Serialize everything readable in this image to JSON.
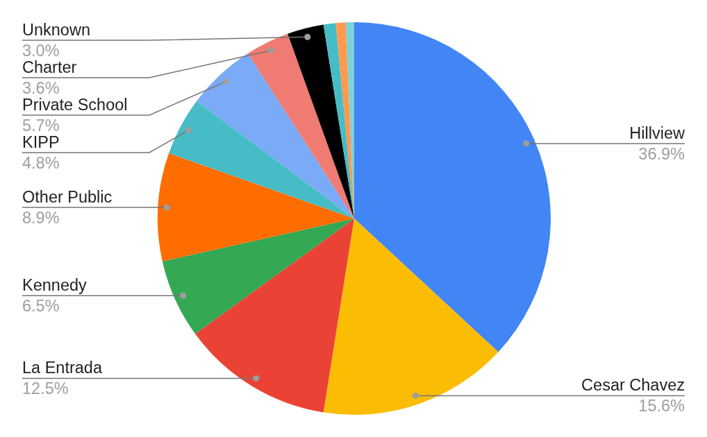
{
  "chart_data": {
    "type": "pie",
    "categories": [
      "Hillview",
      "Cesar Chavez",
      "La Entrada",
      "Kennedy",
      "Other Public",
      "KIPP",
      "Private School",
      "Charter",
      "Unknown",
      null,
      null,
      null
    ],
    "values": [
      36.9,
      15.6,
      12.5,
      6.5,
      8.9,
      4.8,
      5.7,
      3.6,
      3.0,
      1.0,
      0.8,
      0.7
    ],
    "colors": [
      "#4285f4",
      "#fbbc04",
      "#ea4335",
      "#34a853",
      "#ff6d01",
      "#46bdc6",
      "#7baaf7",
      "#f07b72",
      "#000000",
      "#46bdc6",
      "#ff994d",
      "#7ed1d7"
    ],
    "value_labels": [
      "36.9%",
      "15.6%",
      "12.5%",
      "6.5%",
      "8.9%",
      "4.8%",
      "5.7%",
      "3.6%",
      "3.0%",
      null,
      null,
      null
    ]
  }
}
